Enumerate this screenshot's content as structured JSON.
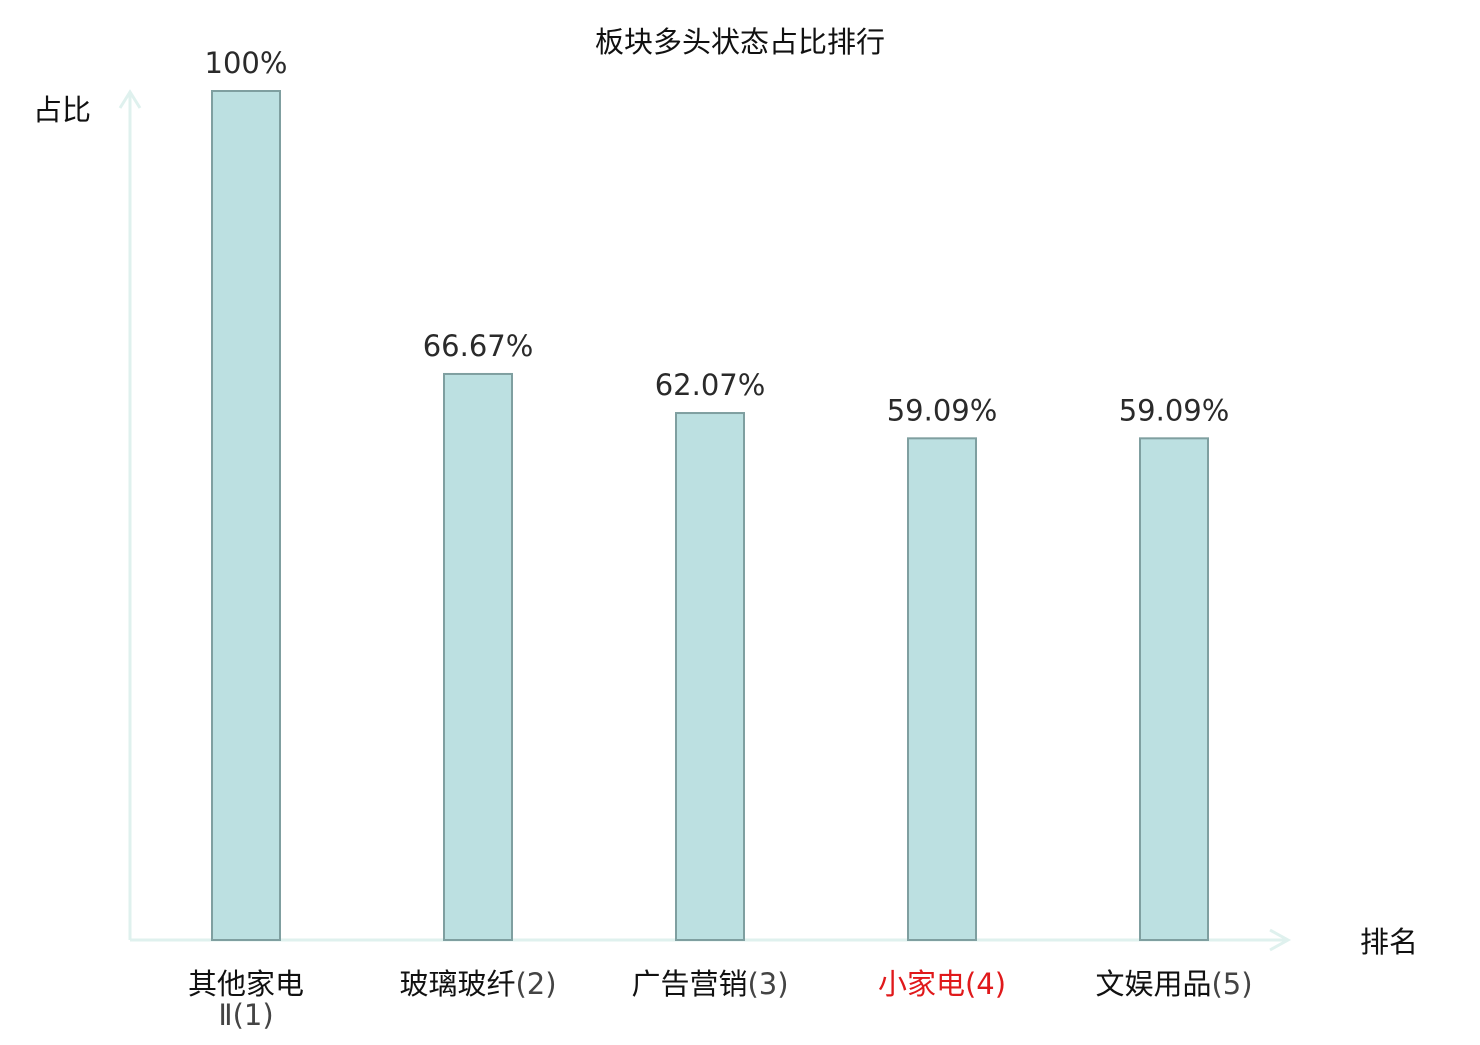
{
  "chart_data": {
    "type": "bar",
    "title": "板块多头状态占比排行",
    "xlabel": "排名",
    "ylabel": "占比",
    "ylim": [
      0,
      100
    ],
    "categories": [
      {
        "name_lines": [
          "其他家电",
          "Ⅱ"
        ],
        "rank_suffix": "(1)",
        "highlight": false
      },
      {
        "name_lines": [
          "玻璃玻纤"
        ],
        "rank_suffix": "(2)",
        "highlight": false
      },
      {
        "name_lines": [
          "广告营销"
        ],
        "rank_suffix": "(3)",
        "highlight": false
      },
      {
        "name_lines": [
          "小家电"
        ],
        "rank_suffix": "(4)",
        "highlight": true
      },
      {
        "name_lines": [
          "文娱用品"
        ],
        "rank_suffix": "(5)",
        "highlight": false
      }
    ],
    "values": [
      100,
      66.67,
      62.07,
      59.09,
      59.09
    ],
    "value_labels": [
      "100%",
      "66.67%",
      "62.07%",
      "59.09%",
      "59.09%"
    ],
    "grid": false,
    "legend": "none"
  },
  "colors": {
    "bar_fill": "#bce0e1",
    "bar_stroke": "#7f9fa0",
    "axis": "#dff1ee",
    "text": "#111111",
    "value_text": "#2a2a2a",
    "suffix_text": "#444444",
    "highlight": "#e0191b"
  }
}
